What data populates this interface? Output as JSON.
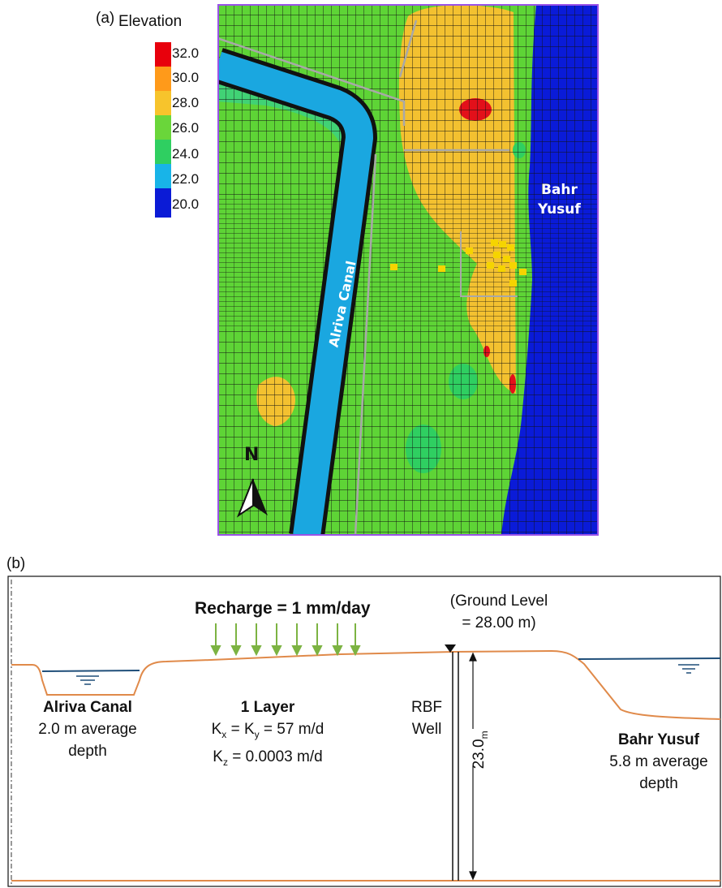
{
  "panel_a": {
    "label": "(a)",
    "legend": {
      "title": "Elevation",
      "ticks": [
        "32.0",
        "30.0",
        "28.0",
        "26.0",
        "24.0",
        "22.0",
        "20.0"
      ],
      "colors": [
        "#e8000c",
        "#f7c42c",
        "#6ad63a",
        "#2fcf61",
        "#18b4e8",
        "#0b1bd6"
      ]
    },
    "canal_label": "Alriva Canal",
    "bahr_label_line1": "Bahr",
    "bahr_label_line2": "Yusuf",
    "north_label": "N"
  },
  "panel_b": {
    "label": "(b)",
    "recharge": "Recharge = 1 mm/day",
    "ground_level_line1": "(Ground Level",
    "ground_level_line2": "= 28.00 m)",
    "canal_title": "Alriva Canal",
    "canal_depth_line1": "2.0 m average",
    "canal_depth_line2": "depth",
    "layer_title": "1 Layer",
    "kxy_text": "K",
    "kxy_sub1": "x",
    "kxy_mid": " = K",
    "kxy_sub2": "y",
    "kxy_value": " = 57 m/d",
    "kz_text": "K",
    "kz_sub": "z",
    "kz_value": " = 0.0003 m/d",
    "well_line1": "RBF",
    "well_line2": "Well",
    "well_depth": "23.0",
    "well_depth_unit": "m",
    "bahr_title": "Bahr Yusuf",
    "bahr_depth_line1": "5.8 m average",
    "bahr_depth_line2": "depth"
  }
}
